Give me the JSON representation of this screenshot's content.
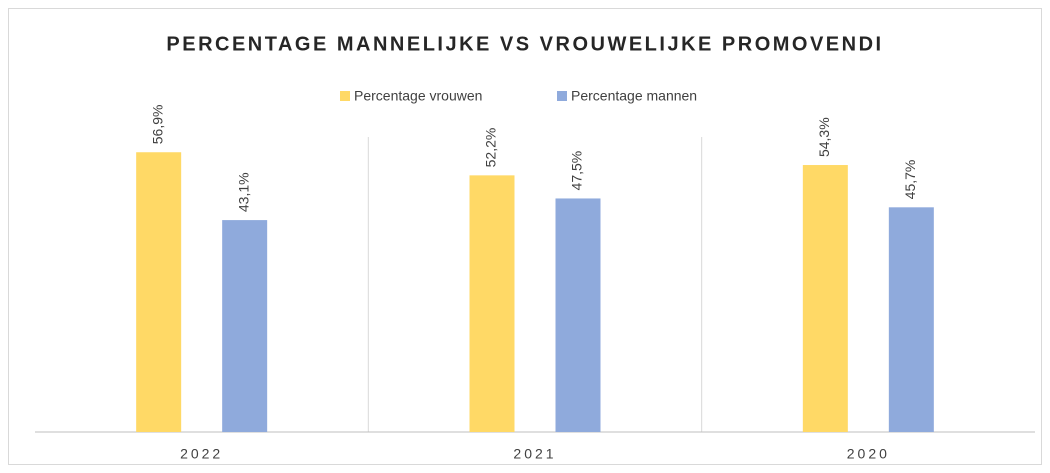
{
  "chart_data": {
    "type": "bar",
    "title": "PERCENTAGE MANNELIJKE VS VROUWELIJKE PROMOVENDI",
    "categories": [
      "2022",
      "2021",
      "2020"
    ],
    "series": [
      {
        "name": "Percentage vrouwen",
        "color": "#ffd966",
        "values": [
          56.9,
          52.2,
          54.3
        ],
        "value_labels": [
          "56,9%",
          "52,2%",
          "54,3%"
        ]
      },
      {
        "name": "Percentage mannen",
        "color": "#8faadc",
        "values": [
          43.1,
          47.5,
          45.7
        ],
        "value_labels": [
          "43,1%",
          "47,5%",
          "45,7%"
        ]
      }
    ],
    "ylim": [
      0,
      60
    ],
    "legend": "top"
  }
}
